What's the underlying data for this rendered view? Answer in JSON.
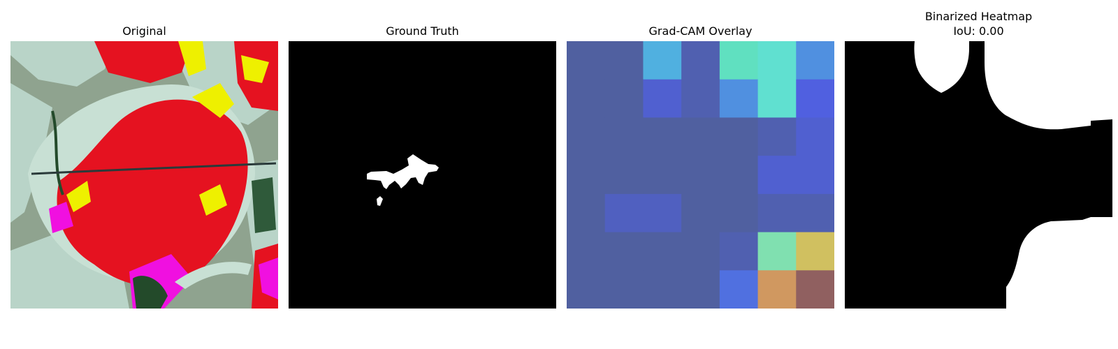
{
  "chart_data": [
    {
      "type": "image",
      "title": "Original",
      "palette": {
        "background": "#8fa38f",
        "pale_leaf": "#b9d4c8",
        "red": "#e51220",
        "yellow": "#eef000",
        "magenta": "#f010e0",
        "dark_green": "#234a2a"
      }
    },
    {
      "type": "image",
      "title": "Ground Truth",
      "palette": {
        "background": "#000000",
        "mask": "#ffffff"
      }
    },
    {
      "type": "heatmap",
      "title": "Grad-CAM Overlay",
      "rows": 7,
      "cols": 7,
      "cell_colors": [
        [
          "#5060a0",
          "#5060a0",
          "#50b0e0",
          "#5060b0",
          "#60e0c0",
          "#60e0d0",
          "#5090e0"
        ],
        [
          "#5060a0",
          "#5060a0",
          "#5060d0",
          "#5060b0",
          "#5090e0",
          "#60e0d0",
          "#5060e0"
        ],
        [
          "#5060a0",
          "#5060a0",
          "#5060a0",
          "#5060a0",
          "#5060a0",
          "#5060b0",
          "#5060d0"
        ],
        [
          "#5060a0",
          "#5060a0",
          "#5060a0",
          "#5060a0",
          "#5060a0",
          "#5060d0",
          "#5060d0"
        ],
        [
          "#5060a0",
          "#5060c0",
          "#5060c0",
          "#5060a0",
          "#5060a0",
          "#5060b0",
          "#5060b0"
        ],
        [
          "#5060a0",
          "#5060a0",
          "#5060a0",
          "#5060a0",
          "#5060b0",
          "#80e0b0",
          "#d0c060"
        ],
        [
          "#5060a0",
          "#5060a0",
          "#5060a0",
          "#5060a0",
          "#5070e0",
          "#d09860",
          "#906060"
        ]
      ]
    },
    {
      "type": "image",
      "title": "Binarized Heatmap",
      "subtitle": "IoU: 0.00",
      "iou": 0.0,
      "palette": {
        "background": "#000000",
        "mask": "#ffffff"
      }
    }
  ]
}
